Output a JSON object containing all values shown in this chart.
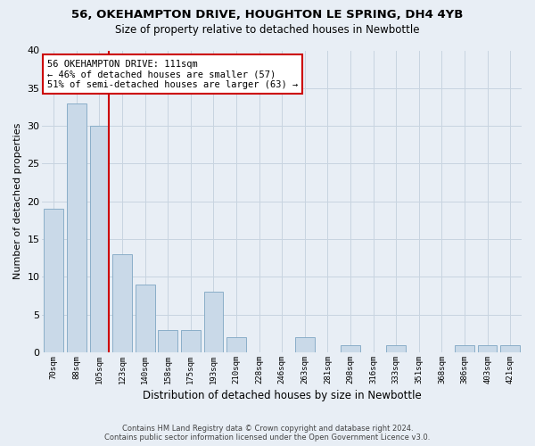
{
  "title1": "56, OKEHAMPTON DRIVE, HOUGHTON LE SPRING, DH4 4YB",
  "title2": "Size of property relative to detached houses in Newbottle",
  "xlabel": "Distribution of detached houses by size in Newbottle",
  "ylabel": "Number of detached properties",
  "categories": [
    "70sqm",
    "88sqm",
    "105sqm",
    "123sqm",
    "140sqm",
    "158sqm",
    "175sqm",
    "193sqm",
    "210sqm",
    "228sqm",
    "246sqm",
    "263sqm",
    "281sqm",
    "298sqm",
    "316sqm",
    "333sqm",
    "351sqm",
    "368sqm",
    "386sqm",
    "403sqm",
    "421sqm"
  ],
  "values": [
    19,
    33,
    30,
    13,
    9,
    3,
    3,
    8,
    2,
    0,
    0,
    2,
    0,
    1,
    0,
    1,
    0,
    0,
    1,
    1,
    1
  ],
  "bar_color": "#c9d9e8",
  "bar_edge_color": "#8aaec8",
  "grid_color": "#c8d4e0",
  "bg_color": "#e8eef5",
  "vline_color": "#cc0000",
  "vline_bar_index": 2,
  "annotation_text": "56 OKEHAMPTON DRIVE: 111sqm\n← 46% of detached houses are smaller (57)\n51% of semi-detached houses are larger (63) →",
  "annotation_box_color": "white",
  "annotation_box_edge": "#cc0000",
  "ylim": [
    0,
    40
  ],
  "yticks": [
    0,
    5,
    10,
    15,
    20,
    25,
    30,
    35,
    40
  ],
  "footer1": "Contains HM Land Registry data © Crown copyright and database right 2024.",
  "footer2": "Contains public sector information licensed under the Open Government Licence v3.0."
}
